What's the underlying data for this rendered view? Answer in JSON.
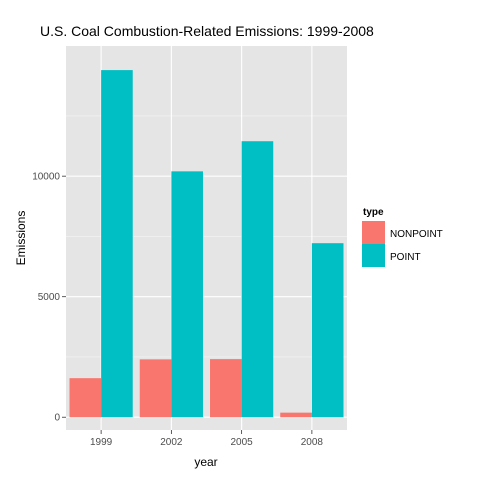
{
  "chart_data": {
    "type": "bar",
    "title": "U.S. Coal Combustion-Related Emissions: 1999-2008",
    "xlabel": "year",
    "ylabel": "Emissions",
    "categories": [
      "1999",
      "2002",
      "2005",
      "2008"
    ],
    "series": [
      {
        "name": "NONPOINT",
        "color": "#F8766D",
        "values": [
          1620,
          2400,
          2410,
          190
        ]
      },
      {
        "name": "POINT",
        "color": "#00BFC4",
        "values": [
          14400,
          10200,
          11450,
          7220
        ]
      }
    ],
    "ylim": [
      -530,
      15400
    ],
    "yticks": [
      0,
      5000,
      10000
    ],
    "ytick_labels": [
      "0",
      "5000",
      "10000"
    ],
    "grid": true,
    "panel_background": "#E5E5E5",
    "grid_color": "#FFFFFF",
    "legend": {
      "title": "type",
      "position": "right"
    }
  }
}
